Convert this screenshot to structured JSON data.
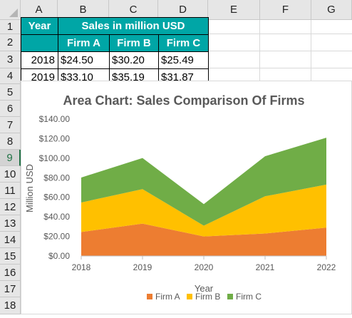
{
  "columns": [
    "A",
    "B",
    "C",
    "D",
    "E",
    "F",
    "G"
  ],
  "rows": [
    "1",
    "2",
    "3",
    "4",
    "5",
    "6",
    "7",
    "8",
    "9",
    "10",
    "11",
    "12",
    "13",
    "14",
    "15",
    "16",
    "17",
    "18"
  ],
  "selected_row": "9",
  "table": {
    "year_header": "Year",
    "sales_header": "Sales in million USD",
    "firm_headers": [
      "Firm A",
      "Firm B",
      "Firm C"
    ],
    "data_rows": [
      {
        "year": "2018",
        "a": "$24.50",
        "b": "$30.20",
        "c": "$25.49"
      },
      {
        "year": "2019",
        "a": "$33.10",
        "b": "$35.19",
        "c": "$31.87"
      }
    ]
  },
  "colors": {
    "firm_a": "#ed7d31",
    "firm_b": "#ffc000",
    "firm_c": "#70ad47",
    "header_fill": "#00a6a6"
  },
  "chart_data": {
    "type": "area",
    "title": "Area Chart: Sales Comparison Of Firms",
    "xlabel": "Year",
    "ylabel": "Million USD",
    "x": [
      "2018",
      "2019",
      "2020",
      "2021",
      "2022"
    ],
    "ylim": [
      0,
      140
    ],
    "y_ticks": [
      "$0.00",
      "$20.00",
      "$40.00",
      "$60.00",
      "$80.00",
      "$100.00",
      "$120.00",
      "$140.00"
    ],
    "stacked": true,
    "grid": false,
    "legend": "bottom",
    "series": [
      {
        "name": "Firm A",
        "values": [
          24.5,
          33.1,
          20,
          23,
          29
        ]
      },
      {
        "name": "Firm B",
        "values": [
          30.2,
          35.19,
          11,
          38,
          44
        ]
      },
      {
        "name": "Firm C",
        "values": [
          25.49,
          31.87,
          22,
          41,
          48
        ]
      }
    ]
  }
}
